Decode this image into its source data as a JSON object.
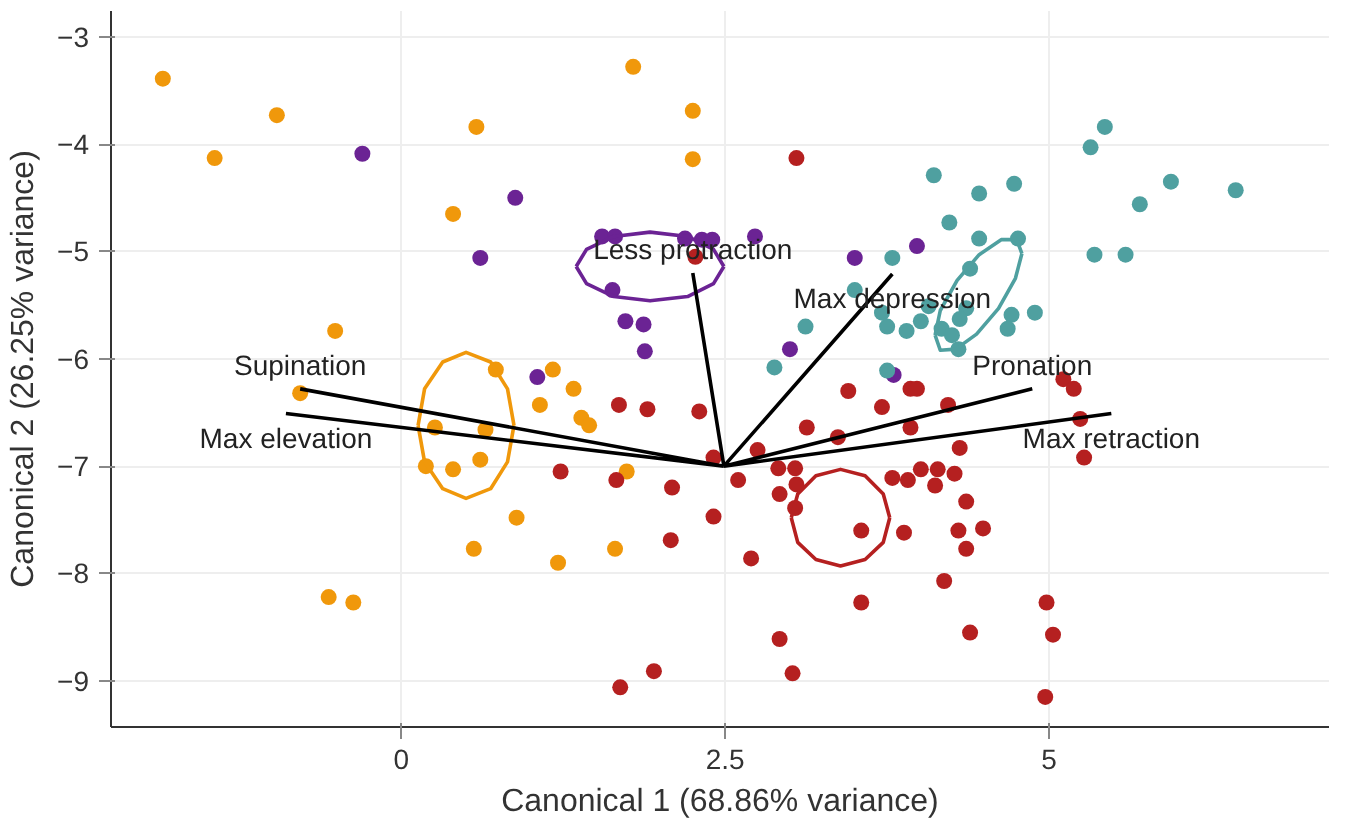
{
  "chart_data": {
    "type": "scatter",
    "xlabel": "Canonical 1 (68.86% variance)",
    "ylabel": "Canonical 2 (26.25% variance)",
    "xlim": [
      -2.24,
      7.16
    ],
    "ylim": [
      -9.43,
      -2.76
    ],
    "xticks": [
      0,
      2.5,
      5
    ],
    "yticks": [
      -9,
      -8,
      -7,
      -6,
      -5,
      -4,
      -3
    ],
    "grid": true,
    "marker": "circle",
    "series": [
      {
        "color": "#f0980b",
        "x": [
          -1.84,
          -1.44,
          -0.96,
          0.58,
          1.79,
          2.25,
          2.25,
          0.4,
          -0.51,
          0.73,
          1.17,
          1.33,
          -0.78,
          1.07,
          1.39,
          1.45,
          0.26,
          0.65,
          0.19,
          0.4,
          0.61,
          1.74,
          0.89,
          0.56,
          1.21,
          1.65,
          -0.56,
          -0.37
        ],
        "values": [
          -3.39,
          -4.13,
          -3.73,
          -3.84,
          -3.28,
          -3.69,
          -4.14,
          -4.65,
          -5.74,
          -6.1,
          -6.1,
          -6.28,
          -6.32,
          -6.43,
          -6.55,
          -6.62,
          -6.64,
          -6.66,
          -7.0,
          -7.03,
          -6.94,
          -7.05,
          -7.48,
          -7.77,
          -7.9,
          -7.77,
          -8.22,
          -8.27
        ]
      },
      {
        "color": "#6b2394",
        "x": [
          -0.3,
          0.88,
          0.61,
          1.55,
          1.65,
          2.19,
          2.32,
          2.4,
          1.63,
          1.73,
          1.87,
          1.88,
          1.05,
          2.73,
          3.5,
          3.98,
          3.0,
          3.8
        ],
        "values": [
          -4.09,
          -4.5,
          -5.06,
          -4.86,
          -4.86,
          -4.88,
          -4.89,
          -4.89,
          -5.36,
          -5.65,
          -5.68,
          -5.93,
          -6.17,
          -4.86,
          -5.06,
          -4.95,
          -5.91,
          -6.15
        ]
      },
      {
        "color": "#4fa0a0",
        "x": [
          4.11,
          4.73,
          4.46,
          5.32,
          5.43,
          5.94,
          6.44,
          5.7,
          4.23,
          4.46,
          4.76,
          5.35,
          5.59,
          3.79,
          3.5,
          4.39,
          4.07,
          3.71,
          3.75,
          3.9,
          4.01,
          4.17,
          4.25,
          4.36,
          4.31,
          4.3,
          4.71,
          4.68,
          4.89,
          3.12,
          2.88,
          3.75
        ],
        "values": [
          -4.29,
          -4.37,
          -4.46,
          -4.03,
          -3.84,
          -4.35,
          -4.43,
          -4.56,
          -4.73,
          -4.88,
          -4.88,
          -5.03,
          -5.03,
          -5.06,
          -5.36,
          -5.16,
          -5.51,
          -5.57,
          -5.7,
          -5.74,
          -5.65,
          -5.72,
          -5.78,
          -5.53,
          -5.63,
          -5.91,
          -5.59,
          -5.72,
          -5.57,
          -5.7,
          -6.08,
          -6.11
        ]
      },
      {
        "color": "#b52020",
        "x": [
          2.27,
          1.68,
          1.9,
          2.3,
          2.41,
          1.23,
          1.66,
          2.09,
          2.41,
          2.08,
          1.69,
          1.95,
          3.05,
          3.45,
          3.93,
          3.98,
          5.11,
          5.19,
          3.71,
          4.22,
          5.24,
          3.13,
          3.93,
          3.37,
          2.75,
          4.31,
          5.27,
          2.91,
          3.04,
          3.05,
          2.6,
          3.79,
          3.91,
          4.01,
          4.14,
          4.27,
          4.12,
          2.92,
          3.04,
          3.55,
          3.88,
          4.36,
          4.3,
          4.49,
          4.36,
          2.7,
          4.19,
          3.55,
          2.92,
          4.39,
          3.02,
          4.98,
          5.03,
          4.97
        ],
        "values": [
          -5.05,
          -6.43,
          -6.47,
          -6.49,
          -6.92,
          -7.05,
          -7.13,
          -7.2,
          -7.47,
          -7.69,
          -9.06,
          -8.91,
          -4.13,
          -6.3,
          -6.28,
          -6.28,
          -6.19,
          -6.28,
          -6.45,
          -6.43,
          -6.56,
          -6.64,
          -6.64,
          -6.73,
          -6.85,
          -6.83,
          -6.92,
          -7.02,
          -7.02,
          -7.17,
          -7.13,
          -7.11,
          -7.13,
          -7.03,
          -7.03,
          -7.07,
          -7.18,
          -7.26,
          -7.39,
          -7.6,
          -7.62,
          -7.33,
          -7.6,
          -7.58,
          -7.77,
          -7.86,
          -8.07,
          -8.27,
          -8.61,
          -8.55,
          -8.93,
          -8.27,
          -8.57,
          -9.15
        ]
      },
      {
        "type": "line",
        "marker": "none",
        "color": "#f0980b",
        "x": [
          0.13,
          0.18,
          0.32,
          0.5,
          0.69,
          0.82,
          0.87,
          null,
          0.13,
          0.18,
          0.32,
          0.5,
          0.69,
          0.82,
          0.87
        ],
        "values": [
          -6.62,
          -6.28,
          -6.03,
          -5.94,
          -6.03,
          -6.28,
          -6.62,
          null,
          -6.62,
          -6.96,
          -7.21,
          -7.3,
          -7.21,
          -6.96,
          -6.62
        ]
      },
      {
        "type": "line",
        "marker": "none",
        "color": "#6b2394",
        "x": [
          1.35,
          1.43,
          1.64,
          1.92,
          2.21,
          2.41,
          2.49
        ],
        "values": [
          -5.14,
          -4.98,
          -4.86,
          -4.82,
          -4.86,
          -4.98,
          -5.14
        ]
      },
      {
        "type": "line",
        "marker": "none",
        "color": "#6b2394",
        "x": [
          1.35,
          1.43,
          1.64,
          1.92,
          2.21,
          2.41,
          2.49
        ],
        "values": [
          -5.14,
          -5.3,
          -5.42,
          -5.46,
          -5.42,
          -5.3,
          -5.14
        ]
      },
      {
        "type": "line",
        "marker": "none",
        "color": "#4fa0a0",
        "x": [
          4.12,
          4.16,
          4.29,
          4.46,
          4.63,
          4.75,
          4.79
        ],
        "values": [
          -5.78,
          -5.55,
          -5.27,
          -5.03,
          -4.89,
          -4.89,
          -5.02
        ]
      },
      {
        "type": "line",
        "marker": "none",
        "color": "#4fa0a0",
        "x": [
          4.12,
          4.16,
          4.28,
          4.44,
          4.61,
          4.74,
          4.79
        ],
        "values": [
          -5.78,
          -5.92,
          -5.91,
          -5.77,
          -5.53,
          -5.25,
          -5.02
        ]
      },
      {
        "type": "line",
        "marker": "none",
        "color": "#b52020",
        "x": [
          3.01,
          3.06,
          3.2,
          3.39,
          3.58,
          3.72,
          3.77
        ],
        "values": [
          -7.48,
          -7.26,
          -7.09,
          -7.03,
          -7.09,
          -7.26,
          -7.48
        ]
      },
      {
        "type": "line",
        "marker": "none",
        "color": "#b52020",
        "x": [
          3.01,
          3.06,
          3.2,
          3.39,
          3.58,
          3.72,
          3.77
        ],
        "values": [
          -7.48,
          -7.71,
          -7.87,
          -7.93,
          -7.87,
          -7.71,
          -7.48
        ]
      },
      {
        "type": "line",
        "marker": "none",
        "color": "#000000",
        "x": [
          -0.78,
          2.49,
          null,
          -0.89,
          2.49,
          null,
          2.25,
          2.49,
          null,
          2.49,
          3.79,
          null,
          2.49,
          4.87,
          null,
          2.49,
          5.48
        ],
        "values": [
          -6.28,
          -7.0,
          null,
          -6.51,
          -7.0,
          null,
          -5.2,
          -7.0,
          null,
          -7.0,
          -5.21,
          null,
          -7.0,
          -6.28,
          null,
          -7.0,
          -6.51
        ]
      }
    ],
    "annotations": [
      {
        "text": "Supination",
        "x": -0.78,
        "y": -6.28
      },
      {
        "text": "Max elevation",
        "x": -0.89,
        "y": -6.51
      },
      {
        "text": "Less protraction",
        "x": 2.25,
        "y": -5.2
      },
      {
        "text": "Max depression",
        "x": 3.79,
        "y": -5.21
      },
      {
        "text": "Pronation",
        "x": 4.87,
        "y": -6.28
      },
      {
        "text": "Max retraction",
        "x": 5.48,
        "y": -6.51
      }
    ]
  }
}
